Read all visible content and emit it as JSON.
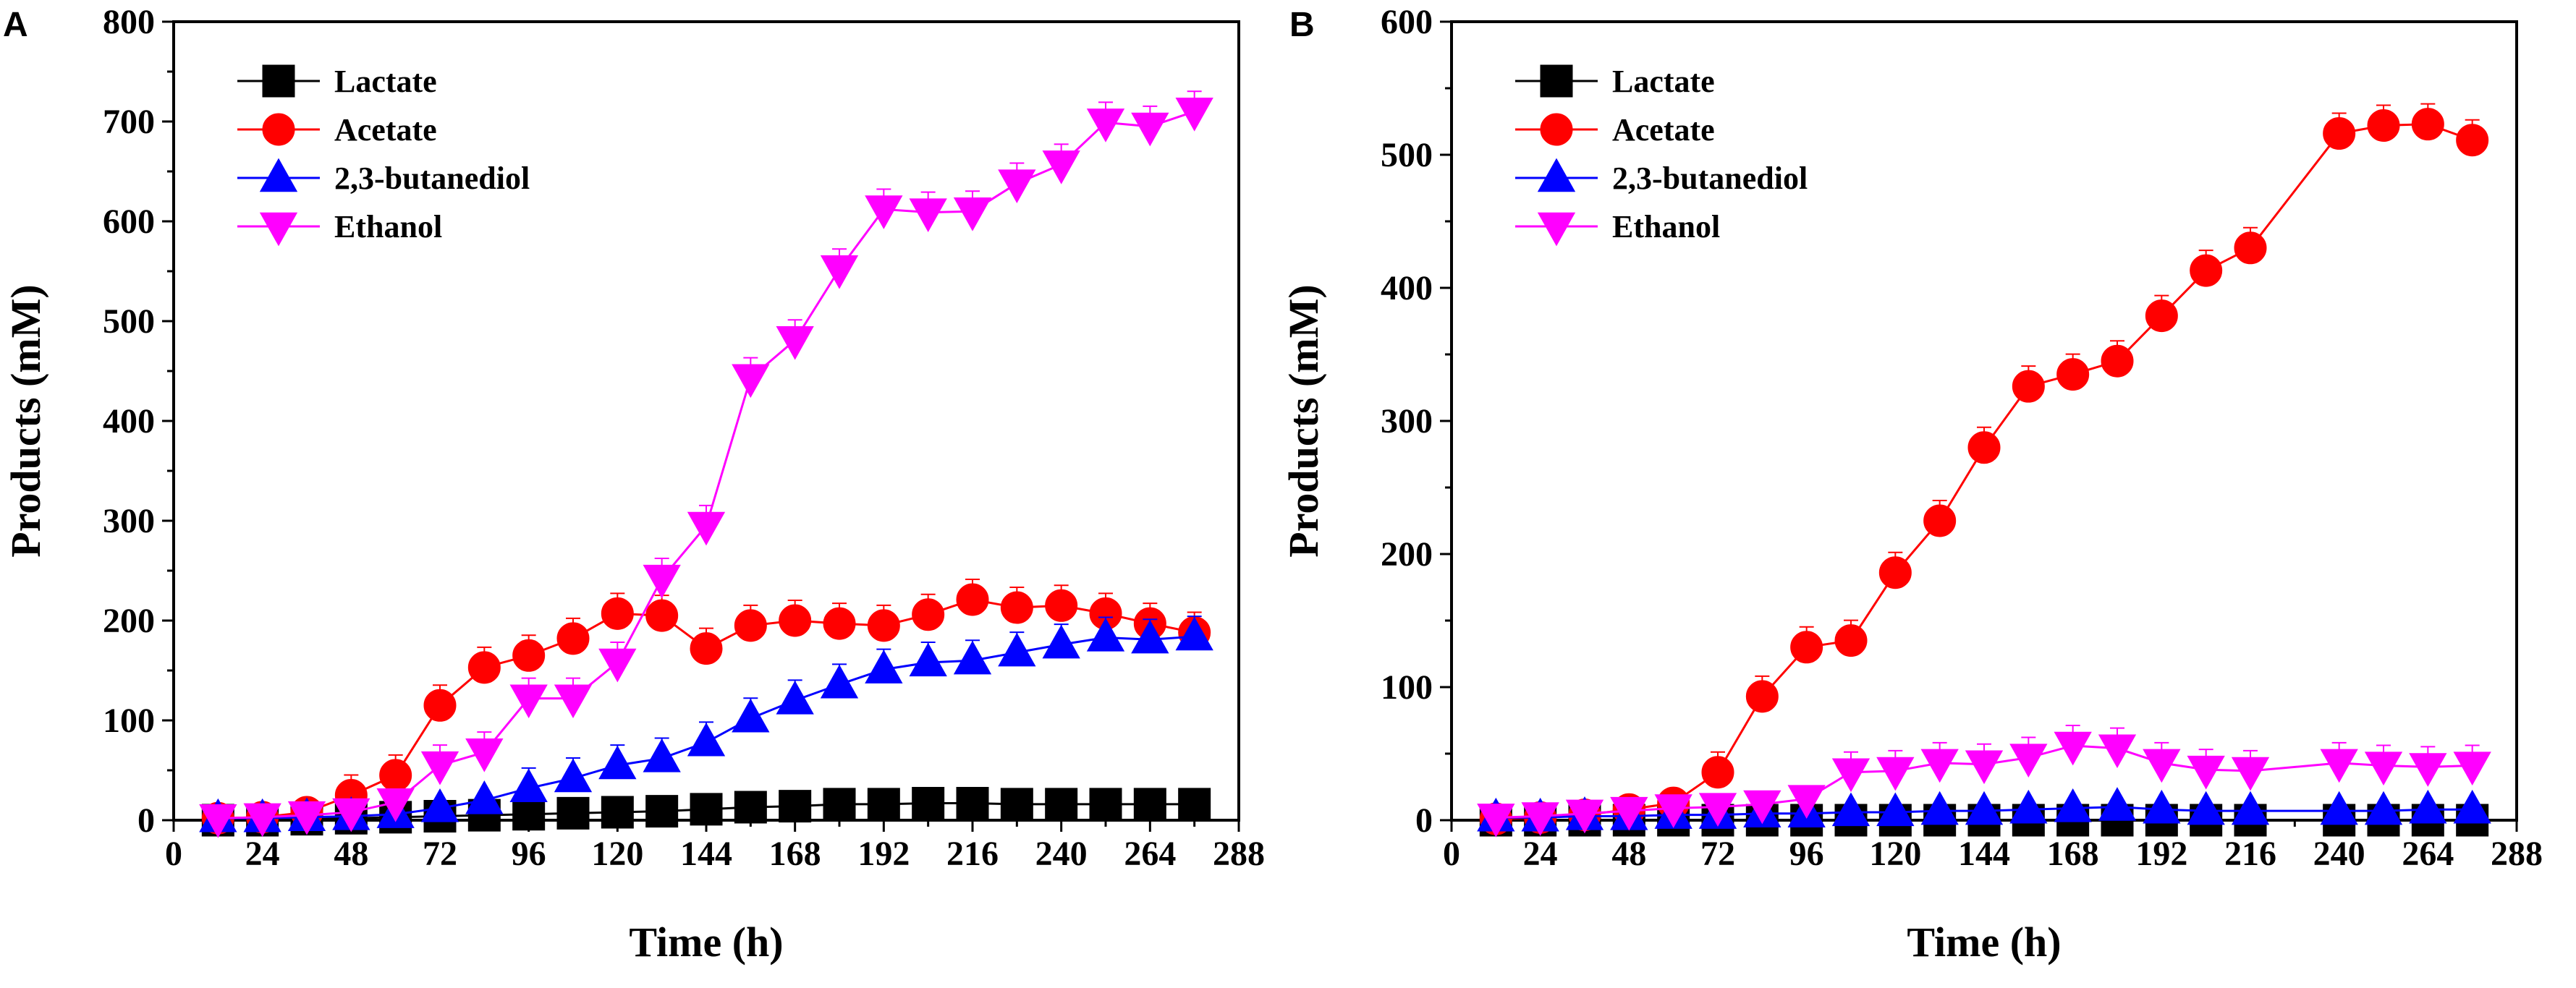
{
  "chart_data": [
    {
      "type": "line",
      "panel": "A",
      "title": "",
      "xlabel": "Time (h)",
      "ylabel": "Products (mM)",
      "xlim": [
        0,
        288
      ],
      "ylim": [
        0,
        800
      ],
      "xticks": [
        0,
        24,
        48,
        72,
        96,
        120,
        144,
        168,
        192,
        216,
        240,
        264,
        288
      ],
      "yticks": [
        0,
        100,
        200,
        300,
        400,
        500,
        600,
        700,
        800
      ],
      "legend_position": "top-left",
      "series": [
        {
          "name": "Lactate",
          "color": "#000000",
          "marker": "square",
          "x": [
            12,
            24,
            36,
            48,
            60,
            72,
            84,
            96,
            108,
            120,
            132,
            144,
            156,
            168,
            180,
            192,
            204,
            216,
            228,
            240,
            252,
            264,
            276
          ],
          "y": [
            0,
            0,
            1,
            2,
            3,
            4,
            5,
            6,
            7,
            8,
            9,
            11,
            13,
            14,
            16,
            16,
            17,
            17,
            16,
            16,
            16,
            16,
            16
          ]
        },
        {
          "name": "Acetate",
          "color": "#ff0000",
          "marker": "circle",
          "x": [
            12,
            24,
            36,
            48,
            60,
            72,
            84,
            96,
            108,
            120,
            132,
            144,
            156,
            168,
            180,
            192,
            204,
            216,
            228,
            240,
            252,
            264,
            276
          ],
          "y": [
            2,
            3,
            8,
            25,
            45,
            115,
            153,
            165,
            182,
            207,
            205,
            172,
            195,
            200,
            197,
            195,
            206,
            221,
            213,
            215,
            207,
            197,
            188
          ]
        },
        {
          "name": "2,3-butanediol",
          "color": "#0000ff",
          "marker": "triangle-up",
          "x": [
            12,
            24,
            36,
            48,
            60,
            72,
            84,
            96,
            108,
            120,
            132,
            144,
            156,
            168,
            180,
            192,
            204,
            216,
            228,
            240,
            252,
            264,
            276
          ],
          "y": [
            2,
            2,
            3,
            4,
            6,
            12,
            20,
            32,
            42,
            55,
            62,
            78,
            102,
            120,
            136,
            151,
            158,
            160,
            168,
            176,
            183,
            181,
            184
          ]
        },
        {
          "name": "Ethanol",
          "color": "#ff00ff",
          "marker": "triangle-down",
          "x": [
            12,
            24,
            36,
            48,
            60,
            72,
            84,
            96,
            108,
            120,
            132,
            144,
            156,
            168,
            180,
            192,
            204,
            216,
            228,
            240,
            252,
            264,
            276
          ],
          "y": [
            2,
            3,
            5,
            8,
            18,
            55,
            68,
            122,
            122,
            158,
            242,
            295,
            443,
            481,
            552,
            612,
            609,
            610,
            638,
            657,
            699,
            695,
            710
          ]
        }
      ]
    },
    {
      "type": "line",
      "panel": "B",
      "title": "",
      "xlabel": "Time (h)",
      "ylabel": "Products (mM)",
      "xlim": [
        0,
        288
      ],
      "ylim": [
        0,
        600
      ],
      "xticks": [
        0,
        24,
        48,
        72,
        96,
        120,
        144,
        168,
        192,
        216,
        240,
        264,
        288
      ],
      "yticks": [
        0,
        100,
        200,
        300,
        400,
        500,
        600
      ],
      "legend_position": "top-left",
      "series": [
        {
          "name": "Lactate",
          "color": "#000000",
          "marker": "square",
          "x": [
            12,
            24,
            36,
            48,
            60,
            72,
            84,
            96,
            108,
            120,
            132,
            144,
            156,
            168,
            180,
            192,
            204,
            216,
            240,
            252,
            264,
            276
          ],
          "y": [
            0,
            0,
            0,
            0,
            0,
            0,
            0,
            0,
            0,
            0,
            0,
            0,
            0,
            0,
            0,
            0,
            0,
            0,
            0,
            0,
            0,
            0
          ]
        },
        {
          "name": "Acetate",
          "color": "#ff0000",
          "marker": "circle",
          "x": [
            12,
            24,
            36,
            48,
            60,
            72,
            84,
            96,
            108,
            120,
            132,
            144,
            156,
            168,
            180,
            192,
            204,
            216,
            240,
            252,
            264,
            276
          ],
          "y": [
            1,
            2,
            4,
            8,
            13,
            36,
            93,
            130,
            135,
            186,
            225,
            280,
            326,
            335,
            345,
            379,
            413,
            430,
            516,
            522,
            523,
            511
          ]
        },
        {
          "name": "2,3-butanediol",
          "color": "#0000ff",
          "marker": "triangle-up",
          "x": [
            12,
            24,
            36,
            48,
            60,
            72,
            84,
            96,
            108,
            120,
            132,
            144,
            156,
            168,
            180,
            192,
            204,
            216,
            240,
            252,
            264,
            276
          ],
          "y": [
            2,
            2,
            3,
            3,
            4,
            4,
            5,
            5,
            6,
            6,
            7,
            7,
            8,
            9,
            10,
            8,
            7,
            7,
            7,
            7,
            8,
            8
          ]
        },
        {
          "name": "Ethanol",
          "color": "#ff00ff",
          "marker": "triangle-down",
          "x": [
            12,
            24,
            36,
            48,
            60,
            72,
            84,
            96,
            108,
            120,
            132,
            144,
            156,
            168,
            180,
            192,
            204,
            216,
            240,
            252,
            264,
            276
          ],
          "y": [
            2,
            3,
            5,
            7,
            9,
            10,
            12,
            16,
            36,
            37,
            43,
            42,
            47,
            56,
            54,
            43,
            38,
            37,
            43,
            41,
            40,
            41
          ]
        }
      ]
    }
  ]
}
